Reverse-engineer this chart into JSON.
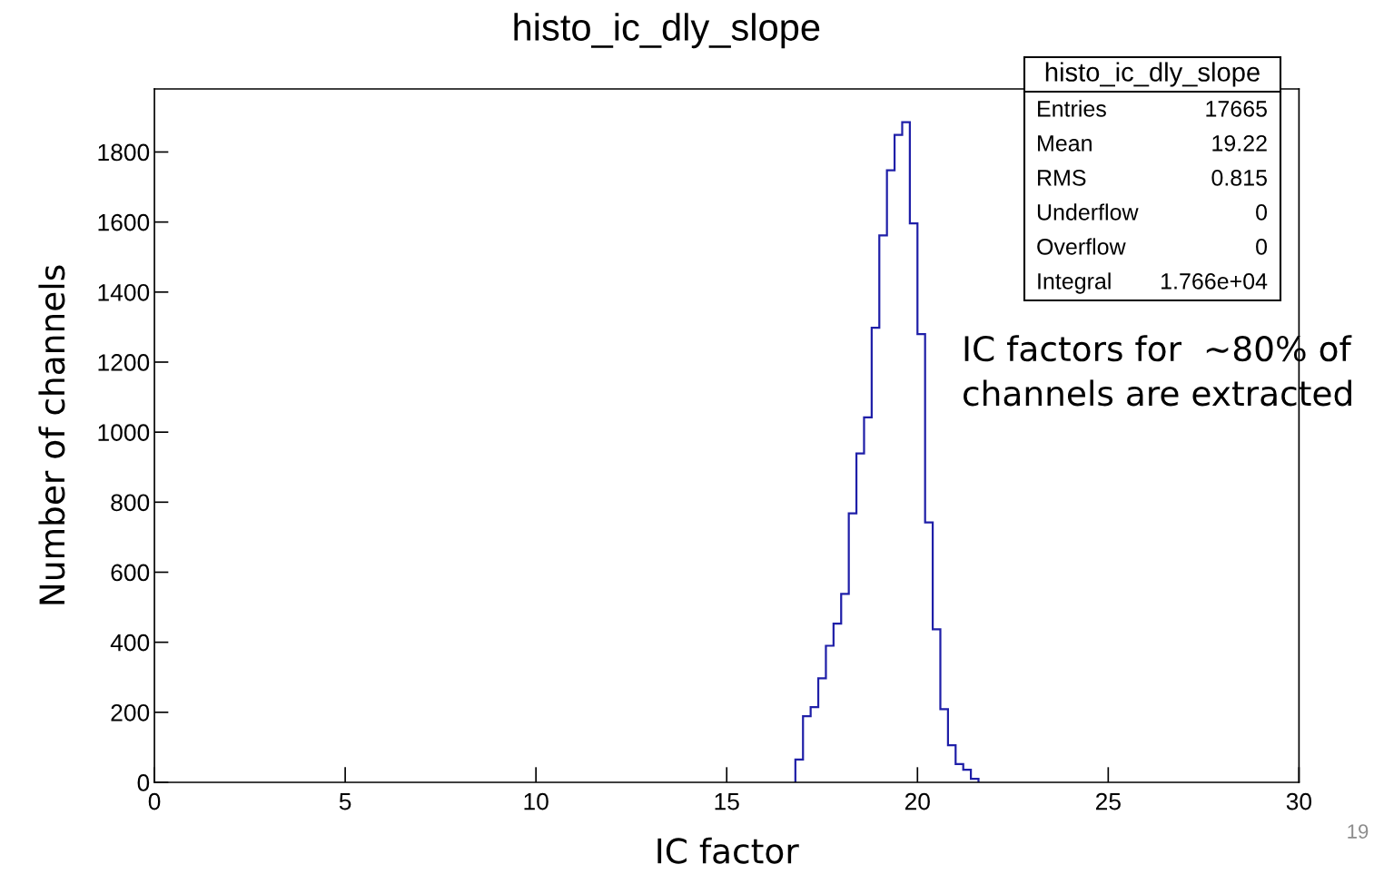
{
  "chart_data": {
    "type": "histogram",
    "title": "histo_ic_dly_slope",
    "xlabel": "IC factor",
    "ylabel": "Number of channels",
    "bins": [
      16.8,
      17.0,
      17.2,
      17.4,
      17.6,
      17.8,
      18.0,
      18.2,
      18.4,
      18.6,
      18.8,
      19.0,
      19.2,
      19.4,
      19.6,
      19.8,
      20.0,
      20.2,
      20.4,
      20.6,
      20.8,
      21.0,
      21.2,
      21.4,
      21.6
    ],
    "values": [
      65,
      189,
      215,
      297,
      390,
      453,
      538,
      768,
      939,
      1042,
      1298,
      1562,
      1748,
      1849,
      1885,
      1596,
      1280,
      742,
      437,
      209,
      106,
      52,
      36,
      10
    ],
    "color": "#1f1fa8",
    "xlim": [
      0,
      30
    ],
    "xticks": [
      0,
      5,
      10,
      15,
      20,
      25,
      30
    ],
    "ylim": [
      0,
      1980
    ],
    "yticks": [
      0,
      200,
      400,
      600,
      800,
      1000,
      1200,
      1400,
      1600,
      1800
    ],
    "grid": false,
    "annotations": [
      "histo_ic_dly_slope",
      "Entries",
      "17665",
      "Mean",
      "19.22",
      "RMS",
      "0.815",
      "Underflow",
      "0",
      "Overflow",
      "0",
      "Integral",
      "1.766e+04",
      "IC factors for  ~80% of channels are extracted",
      "19"
    ]
  }
}
